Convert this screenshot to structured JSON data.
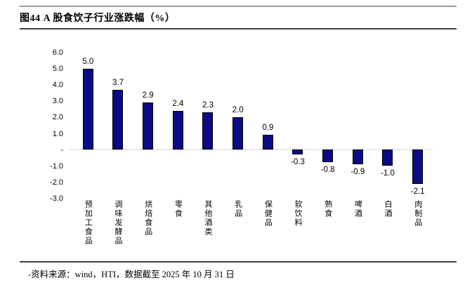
{
  "page": {
    "title": "图44 A 股食饮子行业涨跌幅（%）",
    "footer": "-资料来源：wind，HTI，数据截至 2025 年 10 月 31 日"
  },
  "chart_data": {
    "type": "bar",
    "title": "A 股食饮子行业涨跌幅（%）",
    "categories": [
      "预加工食品",
      "调味发酵品",
      "烘焙食品",
      "零食",
      "其他酒类",
      "乳品",
      "保健品",
      "软饮料",
      "熟食",
      "啤酒",
      "白酒",
      "肉制品"
    ],
    "values": [
      5.0,
      3.7,
      2.9,
      2.4,
      2.3,
      2.0,
      0.9,
      -0.3,
      -0.8,
      -0.9,
      -1.0,
      -2.1
    ],
    "value_labels": [
      "5.0",
      "3.7",
      "2.9",
      "2.4",
      "2.3",
      "2.0",
      "0.9",
      "-0.3",
      "-0.8",
      "-0.9",
      "-1.0",
      "-2.1"
    ],
    "y_ticks": [
      "6.0",
      "5.0",
      "4.0",
      "3.0",
      "2.0",
      "1.0",
      "-",
      "-1.0",
      "-2.0",
      "-3.0"
    ],
    "ylim": [
      -3.0,
      6.0
    ],
    "xlabel": "",
    "ylabel": "",
    "grid": false,
    "legend": false,
    "bar_color": "#0b0b86",
    "bar_border_color": "#000000",
    "baseline_color": "#e8e8e8"
  }
}
